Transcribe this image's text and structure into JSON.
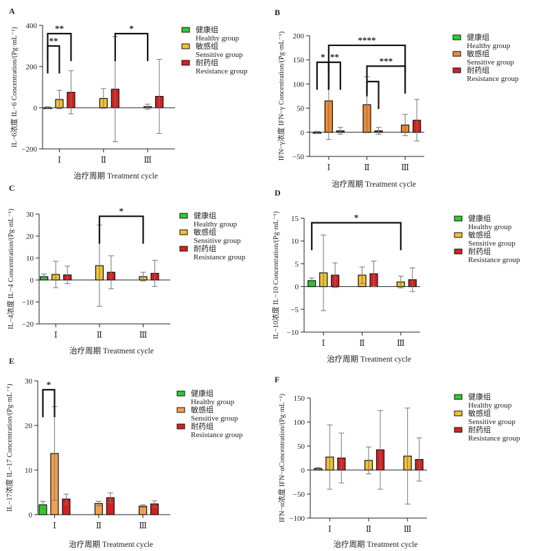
{
  "legend": {
    "items": [
      {
        "zh": "健康组",
        "en": "Healthy group",
        "color": "#2ecc2e"
      },
      {
        "zh": "敏感组",
        "en": "Sensitive group",
        "color": "#f2c230"
      },
      {
        "zh": "耐药组",
        "en": "Resistance group",
        "color": "#d62020"
      }
    ]
  },
  "xlabel": "治疗周期 Treatment cycle",
  "categories": [
    "Ⅰ",
    "Ⅱ",
    "Ⅲ"
  ],
  "chart_data": [
    {
      "panel": "A",
      "type": "bar",
      "ylabel": "IL−6浓度 IL−6 Concentration/(Pg·mL⁻¹)",
      "ylim": [
        -200,
        400
      ],
      "yticks": [
        -200,
        0,
        200,
        400
      ],
      "categories": [
        "Ⅰ",
        "Ⅱ",
        "Ⅲ"
      ],
      "sensitiveColor": "#f2c230",
      "series": [
        {
          "name": "健康组 Healthy group",
          "values": [
            0,
            null,
            null
          ],
          "err": [
            5,
            null,
            null
          ]
        },
        {
          "name": "敏感组 Sensitive group",
          "values": [
            40,
            45,
            5
          ],
          "err": [
            45,
            48,
            12
          ]
        },
        {
          "name": "耐药组 Resistance group",
          "values": [
            75,
            90,
            55
          ],
          "err": [
            105,
            255,
            180
          ]
        }
      ],
      "significance": [
        {
          "from": [
            0,
            0
          ],
          "to": [
            0,
            1
          ],
          "y": 300,
          "label": "**"
        },
        {
          "from": [
            0,
            0
          ],
          "to": [
            0,
            2
          ],
          "y": 360,
          "label": "**"
        },
        {
          "from": [
            1,
            2
          ],
          "to": [
            2,
            1
          ],
          "y": 360,
          "label": "*"
        }
      ]
    },
    {
      "panel": "B",
      "type": "bar",
      "ylabel": "IFN−γ浓度 IFN−γ Concentration/(Pg·mL⁻¹)",
      "ylim": [
        -50,
        200
      ],
      "yticks": [
        -50,
        0,
        50,
        100,
        150,
        200
      ],
      "categories": [
        "Ⅰ",
        "Ⅱ",
        "Ⅲ"
      ],
      "sensitiveColor": "#f08a30",
      "series": [
        {
          "name": "健康组 Healthy group",
          "values": [
            0,
            null,
            null
          ],
          "err": [
            2,
            null,
            null
          ]
        },
        {
          "name": "敏感组 Sensitive group",
          "values": [
            65,
            57,
            15
          ],
          "err": [
            80,
            58,
            22
          ]
        },
        {
          "name": "耐药组 Resistance group",
          "values": [
            3,
            3,
            25
          ],
          "err": [
            7,
            7,
            43
          ]
        }
      ],
      "significance": [
        {
          "from": [
            0,
            0
          ],
          "to": [
            0,
            1
          ],
          "y": 145,
          "label": "*"
        },
        {
          "from": [
            0,
            1
          ],
          "to": [
            0,
            2
          ],
          "y": 145,
          "label": "**"
        },
        {
          "from": [
            0,
            1
          ],
          "to": [
            2,
            1
          ],
          "y": 180,
          "label": "****"
        },
        {
          "from": [
            1,
            1
          ],
          "to": [
            1,
            2
          ],
          "y": 105,
          "label": ""
        },
        {
          "from": [
            1,
            1
          ],
          "to": [
            2,
            1
          ],
          "y": 137,
          "label": "***"
        }
      ]
    },
    {
      "panel": "C",
      "type": "bar",
      "ylabel": "IL−4浓度 IL−4 Concentration/(Pg·mL⁻¹)",
      "ylim": [
        -20,
        30
      ],
      "yticks": [
        -20,
        -10,
        0,
        10,
        20,
        30
      ],
      "categories": [
        "Ⅰ",
        "Ⅱ",
        "Ⅲ"
      ],
      "sensitiveColor": "#f2c230",
      "series": [
        {
          "name": "健康组 Healthy group",
          "values": [
            1.5,
            null,
            null
          ],
          "err": [
            1.2,
            null,
            null
          ]
        },
        {
          "name": "敏感组 Sensitive group",
          "values": [
            2.5,
            6.5,
            1.5
          ],
          "err": [
            6,
            18.5,
            2
          ]
        },
        {
          "name": "耐药组 Resistance group",
          "values": [
            2.3,
            3.5,
            3
          ],
          "err": [
            4,
            7.5,
            6
          ]
        }
      ],
      "significance": [
        {
          "from": [
            1,
            1
          ],
          "to": [
            2,
            1
          ],
          "y": 29,
          "label": "*"
        }
      ]
    },
    {
      "panel": "D",
      "type": "bar",
      "ylabel": "IL−10浓度 IL−10 Concentration/(Pg·mL⁻¹)",
      "ylim": [
        -10,
        15
      ],
      "yticks": [
        -10,
        -5,
        0,
        5,
        10,
        15
      ],
      "categories": [
        "Ⅰ",
        "Ⅱ",
        "Ⅲ"
      ],
      "sensitiveColor": "#f2c230",
      "series": [
        {
          "name": "健康组 Healthy group",
          "values": [
            1.3,
            null,
            null
          ],
          "err": [
            0.6,
            null,
            null
          ]
        },
        {
          "name": "敏感组 Sensitive group",
          "values": [
            3,
            2.5,
            1
          ],
          "err": [
            8.3,
            1.8,
            1.3
          ]
        },
        {
          "name": "耐药组 Resistance group",
          "values": [
            2.5,
            2.8,
            1.5
          ],
          "err": [
            2.7,
            2.8,
            2.6
          ]
        }
      ],
      "significance": [
        {
          "from": [
            0,
            0
          ],
          "to": [
            2,
            1
          ],
          "y": 14,
          "label": "*"
        }
      ]
    },
    {
      "panel": "E",
      "type": "bar",
      "ylabel": "IL−17浓度 IL−17 Concentration/(Pg·mL⁻¹)",
      "ylim": [
        0,
        30
      ],
      "yticks": [
        0,
        10,
        20,
        30
      ],
      "categories": [
        "Ⅰ",
        "Ⅱ",
        "Ⅲ"
      ],
      "sensitiveColor": "#f2a050",
      "series": [
        {
          "name": "健康组 Healthy group",
          "values": [
            2.2,
            null,
            null
          ],
          "err": [
            0.8,
            null,
            null
          ]
        },
        {
          "name": "敏感组 Sensitive group",
          "values": [
            13.7,
            2.5,
            1.9
          ],
          "err": [
            10.5,
            0.5,
            0.3
          ]
        },
        {
          "name": "耐药组 Resistance group",
          "values": [
            3.5,
            3.8,
            2.4
          ],
          "err": [
            1.1,
            1.1,
            0.7
          ]
        }
      ],
      "significance": [
        {
          "from": [
            0,
            0
          ],
          "to": [
            0,
            1
          ],
          "y": 28,
          "label": "*"
        }
      ]
    },
    {
      "panel": "F",
      "type": "bar",
      "ylabel": "IFN−α浓度 IFN−αConcentration/(Pg·mL⁻¹)",
      "ylim": [
        -100,
        150
      ],
      "yticks": [
        -100,
        -50,
        0,
        50,
        100,
        150
      ],
      "categories": [
        "Ⅰ",
        "Ⅱ",
        "Ⅲ"
      ],
      "sensitiveColor": "#f2c230",
      "series": [
        {
          "name": "健康组 Healthy group",
          "values": [
            3,
            null,
            null
          ],
          "err": [
            2,
            null,
            null
          ]
        },
        {
          "name": "敏感组 Sensitive group",
          "values": [
            27,
            20,
            29
          ],
          "err": [
            67,
            28,
            100
          ]
        },
        {
          "name": "耐药组 Resistance group",
          "values": [
            25,
            42,
            22
          ],
          "err": [
            52,
            82,
            45
          ]
        }
      ],
      "significance": []
    }
  ]
}
